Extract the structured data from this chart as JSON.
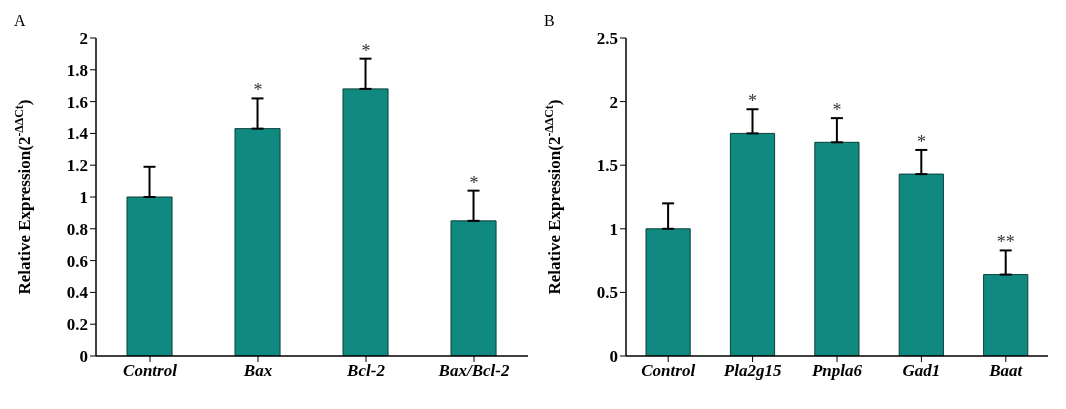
{
  "chart_data": [
    {
      "type": "bar",
      "title": "A",
      "ylabel": "Relative Expression(2$^{-ΔΔCt}$)",
      "categories": [
        "Control",
        "Bax",
        "Bcl-2",
        "Bax/Bcl-2"
      ],
      "values": [
        1.0,
        1.43,
        1.68,
        0.85
      ],
      "errors": [
        [
          1.0,
          1.19
        ],
        [
          1.43,
          1.62
        ],
        [
          1.68,
          1.87
        ],
        [
          0.85,
          1.04
        ]
      ],
      "color": "#108a80",
      "ylim": [
        0,
        2
      ],
      "yticks": [
        0,
        0.2,
        0.4,
        0.6,
        0.8,
        1,
        1.2,
        1.4,
        1.6,
        1.8,
        2
      ],
      "grid": false,
      "legend": false,
      "annotations": [
        {
          "text": "*",
          "x": "Bax",
          "y": 1.62
        },
        {
          "text": "*",
          "x": "Bcl-2",
          "y": 1.87
        },
        {
          "text": "*",
          "x": "Bax/Bcl-2",
          "y": 1.04
        }
      ]
    },
    {
      "type": "bar",
      "title": "B",
      "ylabel": "Relative Expression(2$^{-ΔΔCt}$)",
      "categories": [
        "Control",
        "Pla2g15",
        "Pnpla6",
        "Gad1",
        "Baat"
      ],
      "values": [
        1.0,
        1.75,
        1.68,
        1.43,
        0.64
      ],
      "errors": [
        [
          1.0,
          1.2
        ],
        [
          1.75,
          1.94
        ],
        [
          1.68,
          1.87
        ],
        [
          1.43,
          1.62
        ],
        [
          0.64,
          0.83
        ]
      ],
      "color": "#108a80",
      "ylim": [
        0,
        2.5
      ],
      "yticks": [
        0,
        0.5,
        1,
        1.5,
        2,
        2.5
      ],
      "grid": false,
      "legend": false,
      "annotations": [
        {
          "text": "*",
          "x": "Pla2g15",
          "y": 1.94
        },
        {
          "text": "*",
          "x": "Pnpla6",
          "y": 1.87
        },
        {
          "text": "*",
          "x": "Gad1",
          "y": 1.62
        },
        {
          "text": "**",
          "x": "Baat",
          "y": 0.83
        }
      ]
    }
  ]
}
